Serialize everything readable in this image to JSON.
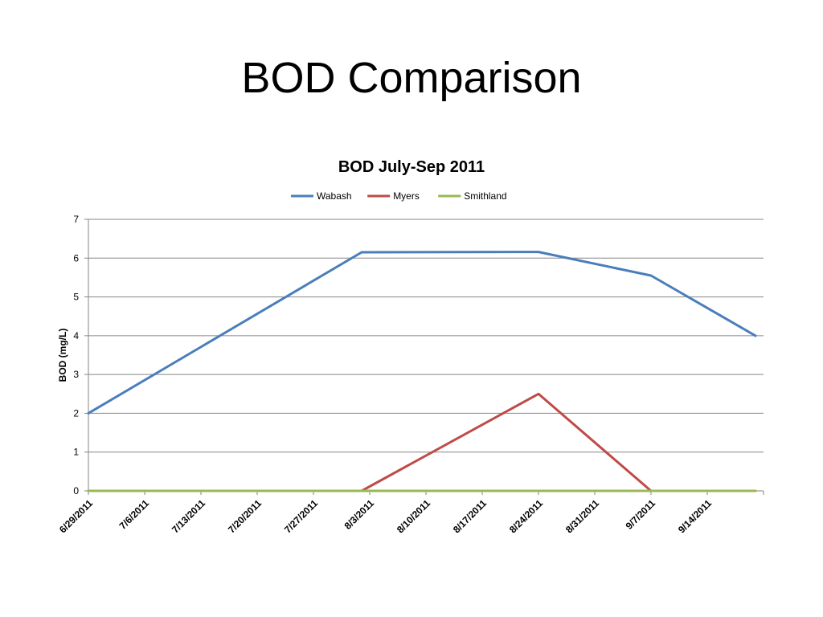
{
  "slide": {
    "title": "BOD Comparison"
  },
  "chart_data": {
    "type": "line",
    "title": "BOD July-Sep 2011",
    "xlabel": "",
    "ylabel": "BOD (mg/L)",
    "ylim": [
      0,
      7
    ],
    "yticks": [
      0,
      1,
      2,
      3,
      4,
      5,
      6,
      7
    ],
    "xlim": [
      "2011-06-29",
      "2011-09-21"
    ],
    "xticks": [
      "6/29/2011",
      "7/6/2011",
      "7/13/2011",
      "7/20/2011",
      "7/27/2011",
      "8/3/2011",
      "8/10/2011",
      "8/17/2011",
      "8/24/2011",
      "8/31/2011",
      "9/7/2011",
      "9/14/2011"
    ],
    "grid": true,
    "legend_position": "top",
    "series": [
      {
        "name": "Wabash",
        "color": "#4a7ebb",
        "points": [
          {
            "x": "2011-06-29",
            "y": 2.0
          },
          {
            "x": "2011-08-02",
            "y": 6.15
          },
          {
            "x": "2011-08-24",
            "y": 6.16
          },
          {
            "x": "2011-09-07",
            "y": 5.55
          },
          {
            "x": "2011-09-20",
            "y": 4.0
          }
        ]
      },
      {
        "name": "Myers",
        "color": "#be4b48",
        "points": [
          {
            "x": "2011-06-29",
            "y": 0
          },
          {
            "x": "2011-08-02",
            "y": 0
          },
          {
            "x": "2011-08-24",
            "y": 2.5
          },
          {
            "x": "2011-09-07",
            "y": 0
          },
          {
            "x": "2011-09-20",
            "y": 0
          }
        ]
      },
      {
        "name": "Smithland",
        "color": "#98b954",
        "points": [
          {
            "x": "2011-06-29",
            "y": 0
          },
          {
            "x": "2011-08-02",
            "y": 0
          },
          {
            "x": "2011-08-24",
            "y": 0
          },
          {
            "x": "2011-09-07",
            "y": 0
          },
          {
            "x": "2011-09-20",
            "y": 0
          }
        ]
      }
    ]
  }
}
